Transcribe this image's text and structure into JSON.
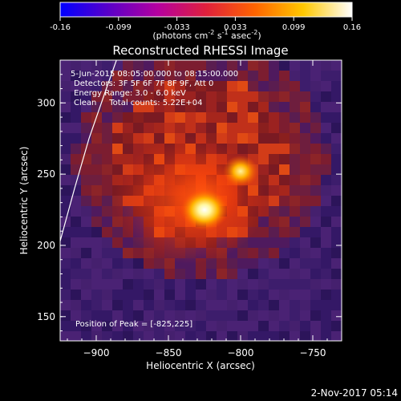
{
  "colorbar": {
    "ticks": [
      "-0.16",
      "-0.099",
      "-0.033",
      "0.033",
      "0.099",
      "0.16"
    ],
    "units_prefix": "(photons cm",
    "units_exp1": "-2",
    "units_mid": " s",
    "units_exp2": "-1",
    "units_mid2": " asec",
    "units_exp3": "-2",
    "units_suffix": ")",
    "stops": [
      "#0000ff",
      "#5a00c8",
      "#b400a0",
      "#e0203c",
      "#ff6400",
      "#ffc800",
      "#ffffff"
    ]
  },
  "chart_data": {
    "type": "heatmap",
    "title": "Reconstructed RHESSI Image",
    "xlabel": "Heliocentric X (arcsec)",
    "ylabel": "Heliocentric Y (arcsec)",
    "xlim": [
      -925,
      -730
    ],
    "ylim": [
      133,
      330
    ],
    "x_ticks": [
      -900,
      -850,
      -800,
      -750
    ],
    "x_tick_labels": [
      "−900",
      "−850",
      "−800",
      "−750"
    ],
    "y_ticks": [
      150,
      200,
      250,
      300
    ],
    "y_tick_labels": [
      "150",
      "200",
      "250",
      "300"
    ],
    "annotations": [
      "5-Jun-2015 08:05:00.000 to 08:15:00.000",
      "Detectors: 3F 5F 6F 7F 8F 9F, Att 0",
      "Energy Range: 3.0 - 6.0 keV",
      "Clean     Total counts: 5.22E+04"
    ],
    "peak_label": "Position of Peak = [-825,225]",
    "peak": [
      -825,
      225
    ],
    "secondary_source": [
      -800,
      252
    ],
    "limb_curve": [
      [
        -925,
        203
      ],
      [
        -915,
        240
      ],
      [
        -905,
        275
      ],
      [
        -893,
        310
      ],
      [
        -886,
        330
      ]
    ]
  },
  "footer": {
    "timestamp": "2-Nov-2017 05:14"
  }
}
